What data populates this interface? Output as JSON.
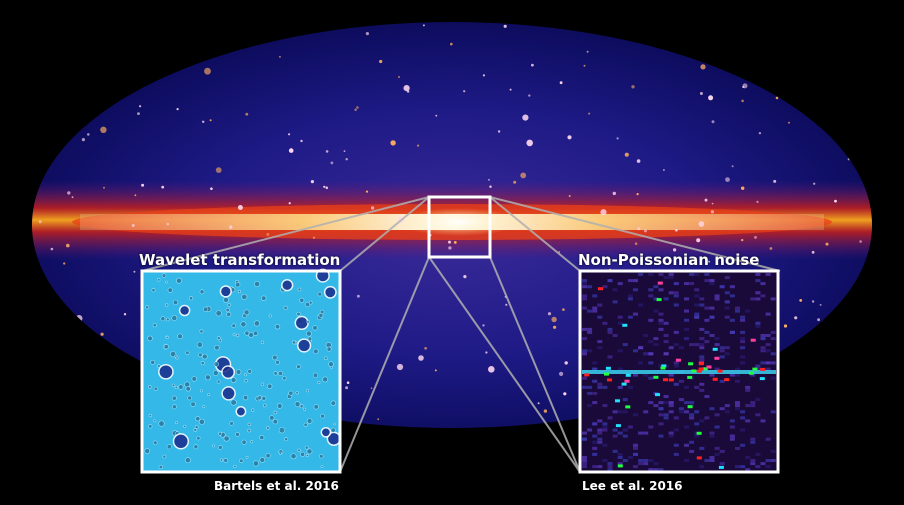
{
  "panels": {
    "left": {
      "title": "Wavelet transformation",
      "citation": "Bartels et al. 2016",
      "background_color": "#33b8e8"
    },
    "right": {
      "title": "Non-Poissonian noise",
      "citation": "Lee et al. 2016",
      "background_color": "#1a0a3a"
    }
  },
  "colors": {
    "frame": "#ffffff",
    "zoom_lines": "#b0b0b0",
    "sky_background": "#000000",
    "galactic_plane_core": "#fff6c8",
    "galactic_plane_glow": "#e8401a"
  },
  "zoom_box_icon": "square-outline"
}
